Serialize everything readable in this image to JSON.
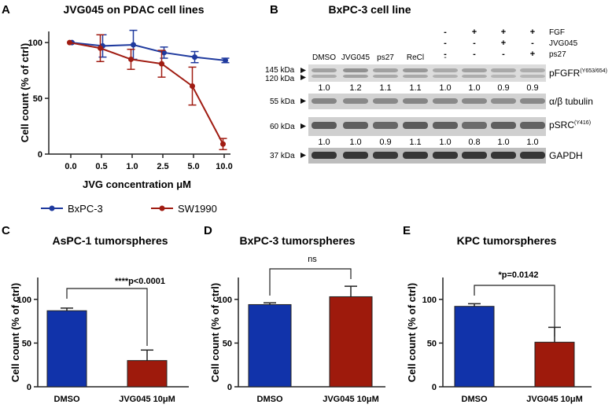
{
  "panels": {
    "A": {
      "letter": "A",
      "title": "JVG045 on PDAC cell lines",
      "ylabel": "Cell count (% of ctrl)",
      "xlabel": "JVG concentration μM",
      "legend": [
        "BxPC-3",
        "SW1990"
      ]
    },
    "B": {
      "letter": "B",
      "title": "BxPC-3 cell line",
      "lane_labels": [
        "DMSO",
        "JVG045",
        "ps27",
        "ReCl"
      ],
      "treatment_rows": [
        {
          "label": "FGF",
          "marks": [
            "",
            "",
            "",
            "",
            "-",
            "+",
            "+",
            "+"
          ]
        },
        {
          "label": "JVG045",
          "marks": [
            "",
            "",
            "",
            "",
            "-",
            "-",
            "+",
            "-"
          ]
        },
        {
          "label": "ps27",
          "marks": [
            "",
            "",
            "",
            "",
            "-",
            "-",
            "-",
            "+"
          ]
        }
      ],
      "blots": [
        {
          "mw": [
            "145 kDa",
            "120 kDa"
          ],
          "name": "pFGFR",
          "sup": "(Y653/654)",
          "quant": [
            "1.0",
            "1.2",
            "1.1",
            "1.1",
            "1.0",
            "1.0",
            "0.9",
            "0.9"
          ]
        },
        {
          "mw": [
            "55 kDa"
          ],
          "name": "α/β tubulin",
          "sup": "",
          "quant": []
        },
        {
          "mw": [
            "60 kDa"
          ],
          "name": "pSRC",
          "sup": "(Y416)",
          "quant": [
            "1.0",
            "1.0",
            "0.9",
            "1.1",
            "1.0",
            "0.8",
            "1.0",
            "1.0"
          ]
        },
        {
          "mw": [
            "37 kDa"
          ],
          "name": "GAPDH",
          "sup": "",
          "quant": []
        }
      ]
    },
    "C": {
      "letter": "C",
      "title": "AsPC-1 tumorspheres",
      "ylabel": "Cell count (% of ctrl)",
      "annotation": "****p<0.0001"
    },
    "D": {
      "letter": "D",
      "title": "BxPC-3 tumorspheres",
      "ylabel": "Cell count (% of ctrl)",
      "annotation": "ns"
    },
    "E": {
      "letter": "E",
      "title": "KPC tumorspheres",
      "ylabel": "Cell count (% of ctrl)",
      "annotation": "*p=0.0142"
    }
  },
  "colors": {
    "blue": "#1f3a9e",
    "red": "#a01c12",
    "bar_blue": "#1133aa",
    "bar_red": "#9e1a0c"
  },
  "chart_data": [
    {
      "type": "line",
      "title": "JVG045 on PDAC cell lines",
      "xlabel": "JVG concentration μM",
      "ylabel": "Cell count (% of ctrl)",
      "x": [
        "0.0",
        "0.5",
        "1.0",
        "2.5",
        "5.0",
        "10.0"
      ],
      "ylim": [
        0,
        110
      ],
      "yticks": [
        0,
        50,
        100
      ],
      "series": [
        {
          "name": "BxPC-3",
          "color": "#1f3a9e",
          "values": [
            100,
            97,
            98,
            91,
            87,
            84
          ],
          "errors": [
            0,
            10,
            13,
            5,
            5,
            2
          ]
        },
        {
          "name": "SW1990",
          "color": "#a01c12",
          "values": [
            100,
            95,
            85,
            81,
            61,
            9
          ],
          "errors": [
            0,
            12,
            9,
            12,
            17,
            5
          ]
        }
      ],
      "legend": "bottom"
    },
    {
      "type": "bar",
      "title": "AsPC-1 tumorspheres",
      "ylabel": "Cell count (% of ctrl)",
      "categories": [
        "DMSO",
        "JVG045 10μM"
      ],
      "values": [
        87,
        30
      ],
      "errors": [
        3,
        12
      ],
      "ylim": [
        0,
        125
      ],
      "yticks": [
        0,
        50,
        100
      ]
    },
    {
      "type": "bar",
      "title": "BxPC-3 tumorspheres",
      "ylabel": "Cell count (% of ctrl)",
      "categories": [
        "DMSO",
        "JVG045 10μM"
      ],
      "values": [
        94,
        103
      ],
      "errors": [
        2,
        12
      ],
      "ylim": [
        0,
        125
      ],
      "yticks": [
        0,
        50,
        100
      ]
    },
    {
      "type": "bar",
      "title": "KPC tumorspheres",
      "ylabel": "Cell count (% of ctrl)",
      "categories": [
        "DMSO",
        "JVG045 10μM"
      ],
      "values": [
        92,
        51
      ],
      "errors": [
        3,
        17
      ],
      "ylim": [
        0,
        125
      ],
      "yticks": [
        0,
        50,
        100
      ]
    }
  ]
}
